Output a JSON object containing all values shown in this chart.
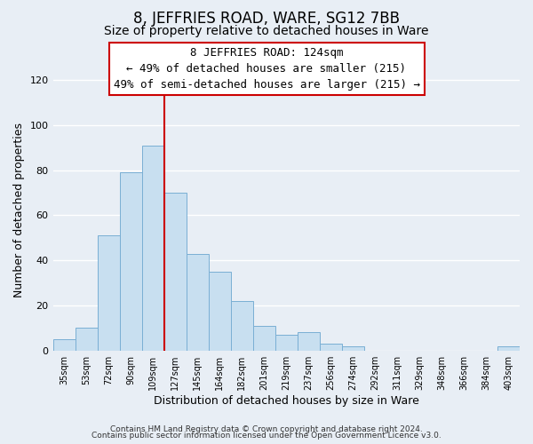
{
  "title": "8, JEFFRIES ROAD, WARE, SG12 7BB",
  "subtitle": "Size of property relative to detached houses in Ware",
  "xlabel": "Distribution of detached houses by size in Ware",
  "ylabel": "Number of detached properties",
  "footer_line1": "Contains HM Land Registry data © Crown copyright and database right 2024.",
  "footer_line2": "Contains public sector information licensed under the Open Government Licence v3.0.",
  "bar_labels": [
    "35sqm",
    "53sqm",
    "72sqm",
    "90sqm",
    "109sqm",
    "127sqm",
    "145sqm",
    "164sqm",
    "182sqm",
    "201sqm",
    "219sqm",
    "237sqm",
    "256sqm",
    "274sqm",
    "292sqm",
    "311sqm",
    "329sqm",
    "348sqm",
    "366sqm",
    "384sqm",
    "403sqm"
  ],
  "bar_values": [
    5,
    10,
    51,
    79,
    91,
    70,
    43,
    35,
    22,
    11,
    7,
    8,
    3,
    2,
    0,
    0,
    0,
    0,
    0,
    0,
    2
  ],
  "bar_color": "#c8dff0",
  "bar_edge_color": "#7aafd4",
  "vline_x": 5.0,
  "vline_color": "#cc0000",
  "annotation_title": "8 JEFFRIES ROAD: 124sqm",
  "annotation_line1": "← 49% of detached houses are smaller (215)",
  "annotation_line2": "49% of semi-detached houses are larger (215) →",
  "annotation_box_edgecolor": "#cc0000",
  "annotation_box_facecolor": "#ffffff",
  "ylim": [
    0,
    125
  ],
  "yticks": [
    0,
    20,
    40,
    60,
    80,
    100,
    120
  ],
  "background_color": "#e8eef5",
  "plot_background_color": "#e8eef5",
  "grid_color": "#ffffff",
  "title_fontsize": 12,
  "subtitle_fontsize": 10,
  "annotation_fontsize": 9
}
